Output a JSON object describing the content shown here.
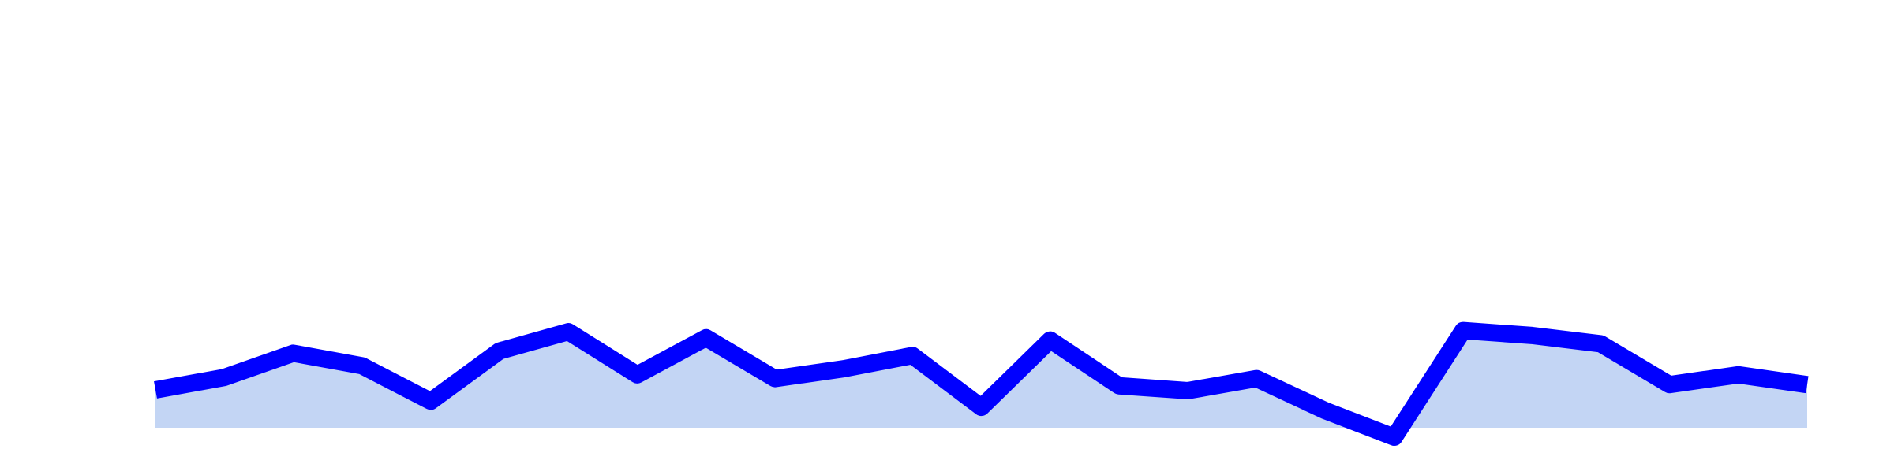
{
  "chart_data": {
    "type": "area",
    "title": "",
    "xlabel": "",
    "ylabel": "",
    "grid": false,
    "legend": "none",
    "x": [
      1,
      2,
      3,
      4,
      5,
      6,
      7,
      8,
      9,
      10,
      11,
      12,
      13,
      14,
      15,
      16,
      17,
      18,
      19,
      20,
      21,
      22,
      23,
      24,
      25
    ],
    "ylim": [
      0,
      100
    ],
    "series": [
      {
        "values": [
          10.0,
          13.3,
          19.7,
          16.4,
          7.0,
          20.3,
          25.4,
          14.0,
          23.8,
          13.0,
          15.6,
          19.1,
          5.4,
          23.2,
          11.1,
          9.8,
          13.0,
          4.5,
          -2.5,
          25.7,
          24.4,
          22.2,
          11.4,
          14.0,
          11.4
        ],
        "line_color": "#0000ff",
        "fill_color": "#c3d5f4"
      }
    ]
  }
}
